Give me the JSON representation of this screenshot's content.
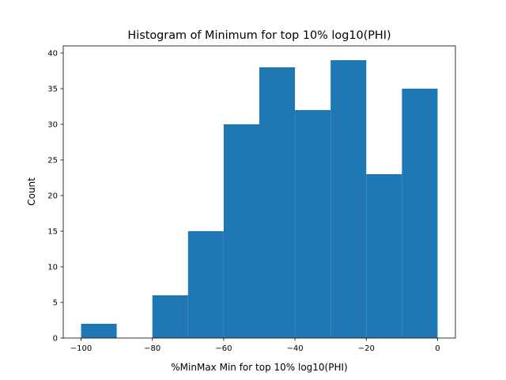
{
  "chart_data": {
    "type": "bar",
    "title": "Histogram of Minimum for top 10% log10(PHI)",
    "xlabel": "%MinMax Min for top 10% log10(PHI)",
    "ylabel": "Count",
    "bins": [
      {
        "start": -100,
        "end": -90,
        "count": 2
      },
      {
        "start": -90,
        "end": -80,
        "count": 0
      },
      {
        "start": -80,
        "end": -70,
        "count": 6
      },
      {
        "start": -70,
        "end": -60,
        "count": 15
      },
      {
        "start": -60,
        "end": -50,
        "count": 30
      },
      {
        "start": -50,
        "end": -40,
        "count": 38
      },
      {
        "start": -40,
        "end": -30,
        "count": 32
      },
      {
        "start": -30,
        "end": -20,
        "count": 39
      },
      {
        "start": -20,
        "end": -10,
        "count": 23
      },
      {
        "start": -10,
        "end": 0,
        "count": 35
      }
    ],
    "xlim": [
      -105,
      5
    ],
    "ylim": [
      0,
      41
    ],
    "x_ticks": [
      -100,
      -80,
      -60,
      -40,
      -20,
      0
    ],
    "y_ticks": [
      0,
      5,
      10,
      15,
      20,
      25,
      30,
      35,
      40
    ],
    "bar_color": "#1f77b4",
    "grid": false
  }
}
